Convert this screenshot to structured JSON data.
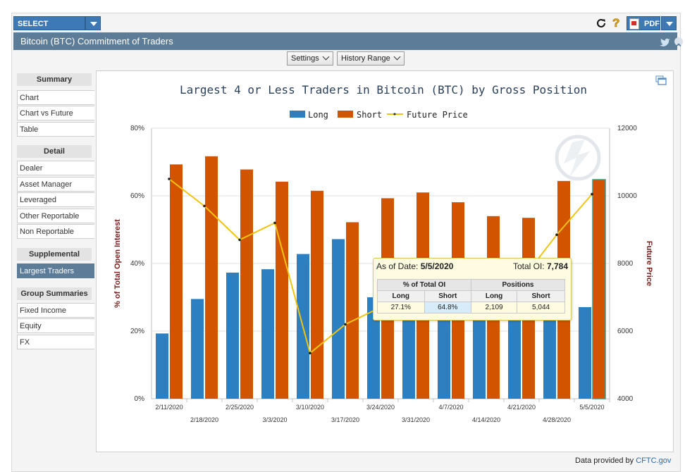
{
  "toolbar": {
    "select_product": "SELECT PRODUCT",
    "pdf": "PDF"
  },
  "page_title": "Bitcoin (BTC) Commitment of Traders",
  "controls": {
    "settings": "Settings",
    "history_range": "History Range"
  },
  "sidebar": {
    "sections": [
      {
        "title": "Summary",
        "items": [
          "Chart",
          "Chart vs Future",
          "Table"
        ]
      },
      {
        "title": "Detail",
        "items": [
          "Dealer",
          "Asset Manager",
          "Leveraged",
          "Other Reportable",
          "Non Reportable"
        ]
      },
      {
        "title": "Supplemental",
        "items": [
          "Largest Traders"
        ]
      },
      {
        "title": "Group Summaries",
        "items": [
          "Fixed Income",
          "Equity",
          "FX"
        ]
      }
    ],
    "active_item": "Largest Traders"
  },
  "chart_data": {
    "type": "bar",
    "title": "Largest 4 or Less Traders in Bitcoin (BTC) by Gross Position",
    "legend": [
      "Long",
      "Short",
      "Future Price"
    ],
    "categories": [
      "2/11/2020",
      "2/18/2020",
      "2/25/2020",
      "3/3/2020",
      "3/10/2020",
      "3/17/2020",
      "3/24/2020",
      "3/31/2020",
      "4/7/2020",
      "4/14/2020",
      "4/21/2020",
      "4/28/2020",
      "5/5/2020"
    ],
    "series": [
      {
        "name": "Long",
        "color": "#2c7fc0",
        "values": [
          19.3,
          29.5,
          37.3,
          38.3,
          42.8,
          47.2,
          30.0,
          30.5,
          33.0,
          31.0,
          28.0,
          28.5,
          27.1
        ]
      },
      {
        "name": "Short",
        "color": "#d35400",
        "values": [
          69.3,
          71.7,
          67.8,
          64.2,
          61.5,
          52.2,
          59.3,
          61.0,
          58.1,
          54.0,
          53.5,
          64.4,
          64.8
        ]
      }
    ],
    "line_series": {
      "name": "Future Price",
      "color": "#f1c40f",
      "values": [
        10500,
        9700,
        8700,
        9200,
        5350,
        6200,
        6700,
        6600,
        7300,
        7000,
        7500,
        8850,
        10050
      ]
    },
    "ylabel": "% of Total Open Interest",
    "y2label": "Future Price",
    "ylim": [
      0,
      80
    ],
    "y2lim": [
      4000,
      12000
    ],
    "yticks": [
      "0%",
      "20%",
      "40%",
      "60%",
      "80%"
    ],
    "y2ticks": [
      "4000",
      "6000",
      "8000",
      "10000",
      "12000"
    ],
    "grid": true,
    "legend_placement": "top"
  },
  "tooltip": {
    "date_label": "As of Date:",
    "date": "5/5/2020",
    "oi_label": "Total OI:",
    "oi": "7,784",
    "h1": "% of Total OI",
    "h2": "Positions",
    "sub": [
      "Long",
      "Short",
      "Long",
      "Short"
    ],
    "vals": [
      "27.1%",
      "64.8%",
      "2,109",
      "5,044"
    ]
  },
  "footer": {
    "text": "Data provided by",
    "link": "CFTC.gov"
  }
}
